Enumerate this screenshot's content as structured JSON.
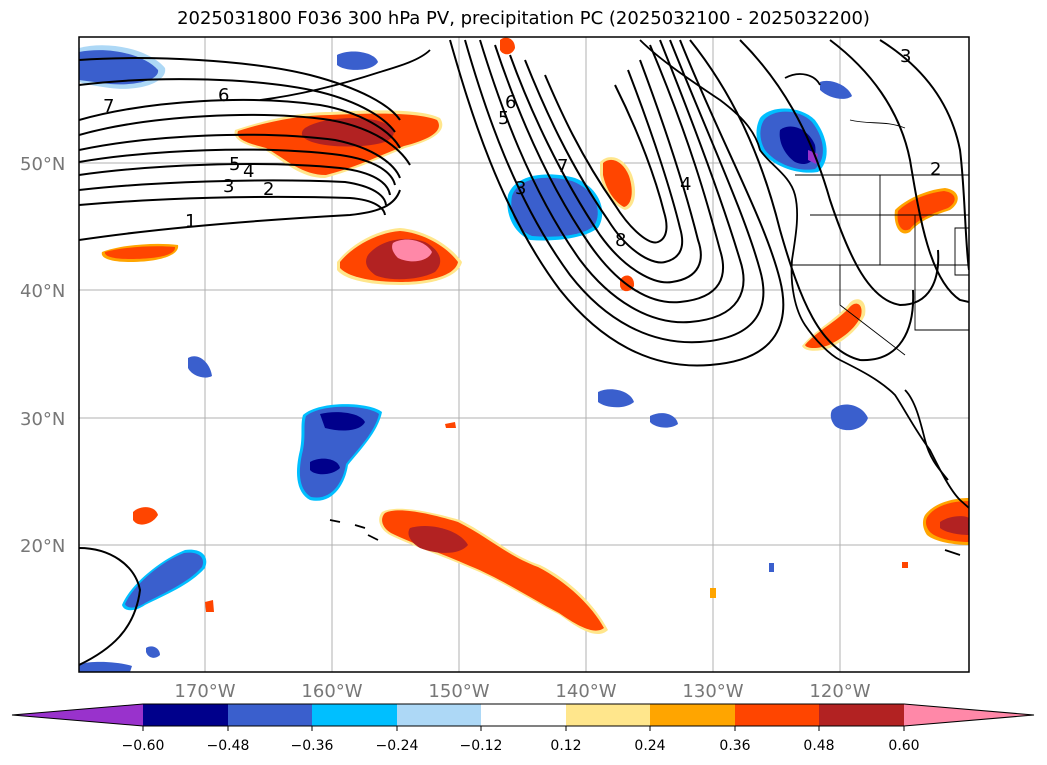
{
  "title": "2025031800 F036 300 hPa PV, precipitation PC (2025032100 - 2025032200)",
  "lat_labels": [
    "50°N",
    "40°N",
    "30°N",
    "20°N"
  ],
  "lon_labels": [
    "170°W",
    "160°W",
    "150°W",
    "140°W",
    "130°W",
    "120°W"
  ],
  "colorbar": {
    "ticks": [
      "−0.60",
      "−0.48",
      "−0.36",
      "−0.24",
      "−0.12",
      "0.12",
      "0.24",
      "0.36",
      "0.48",
      "0.60"
    ],
    "colors": [
      "#9932cc",
      "#00008b",
      "#3a5fcd",
      "#00bfff",
      "#add8f6",
      "#ffffff",
      "#ffe68c",
      "#ffa500",
      "#ff4500",
      "#b22222",
      "#ff88a8"
    ]
  },
  "contour_labels": [
    "7",
    "6",
    "5",
    "4",
    "3",
    "2",
    "1",
    "6",
    "5",
    "3",
    "7",
    "4",
    "8",
    "3",
    "2"
  ],
  "colors": {
    "gridline": "#b0b0b0",
    "contour": "#000000",
    "coast": "#000000"
  }
}
